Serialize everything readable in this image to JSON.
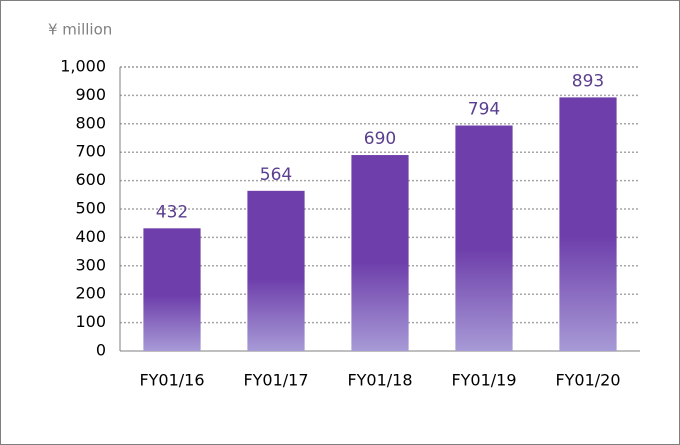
{
  "chart_data": {
    "type": "bar",
    "y_axis_label": "¥ million",
    "categories": [
      "FY01/16",
      "FY01/17",
      "FY01/18",
      "FY01/19",
      "FY01/20"
    ],
    "values": [
      432,
      564,
      690,
      794,
      893
    ],
    "color": "#6e3fab",
    "ylim": [
      0,
      1000
    ],
    "yticks": [
      0,
      100,
      200,
      300,
      400,
      500,
      600,
      700,
      800,
      900,
      {
        "value": 1000,
        "label": "1,000"
      }
    ],
    "grid": true
  }
}
